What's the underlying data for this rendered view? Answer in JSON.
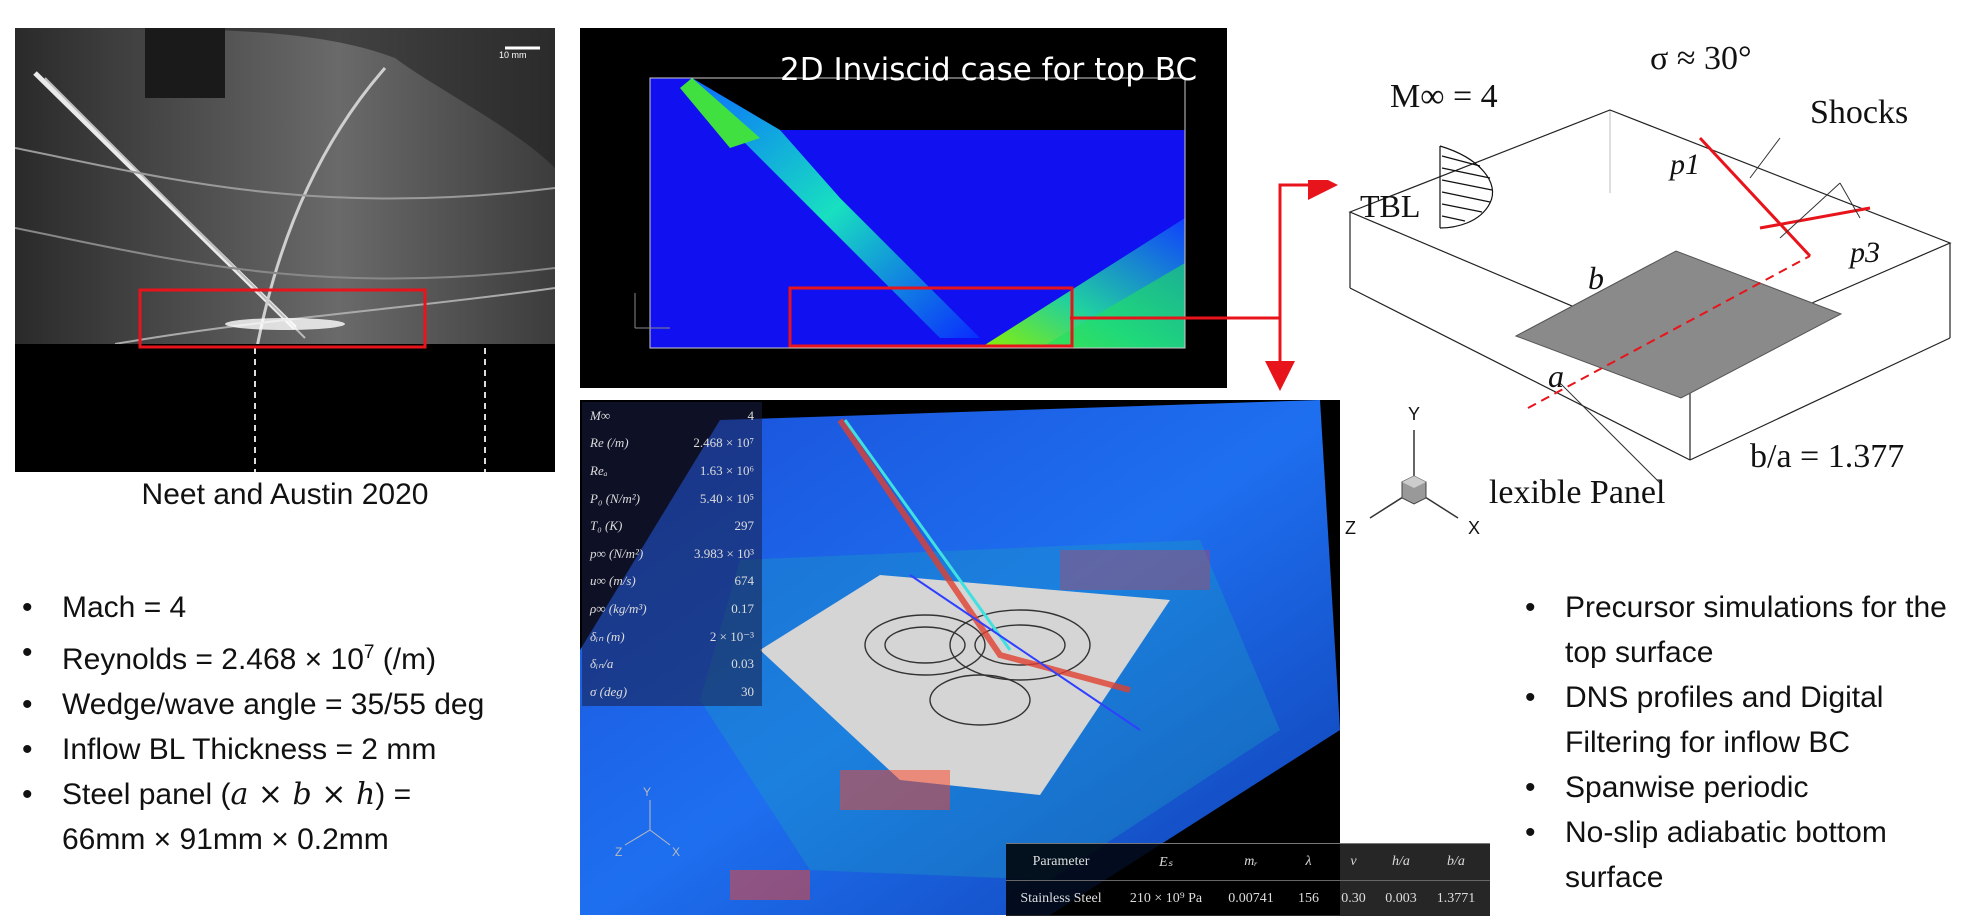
{
  "schlieren": {
    "caption": "Neet and Austin 2020",
    "scale_bar": "10 mm"
  },
  "left_bullets": [
    {
      "html_key": "mach",
      "text": "Mach = 4"
    },
    {
      "html_key": "reynolds",
      "text": "Reynolds = 2.468 × 10",
      "sup": "7",
      "tail": " (/m)"
    },
    {
      "html_key": "angle",
      "text": "Wedge/wave angle = 35/55 deg"
    },
    {
      "html_key": "bl",
      "text": "Inflow BL Thickness =  2 mm"
    },
    {
      "html_key": "panel",
      "text_a": "Steel panel (",
      "italic": "a  × b  × h",
      "text_b": ") =",
      "line2": "66mm × 91mm × 0.2mm"
    }
  ],
  "inviscid": {
    "title": "2D Inviscid case for top BC"
  },
  "schematic": {
    "mach": "M∞ = 4",
    "sigma": "σ ≈ 30°",
    "shocks": "Shocks",
    "tbl": "TBL",
    "p1": "p1",
    "p3": "p3",
    "b": "b",
    "a": "a",
    "panel": "Flexible Panel",
    "ratio": "b/a = 1.377"
  },
  "axis_triad": {
    "y": "Y",
    "z": "Z",
    "x": "X"
  },
  "dns_params": [
    {
      "k": "M∞",
      "v": "4"
    },
    {
      "k": "Re (/m)",
      "v": "2.468 × 10⁷"
    },
    {
      "k": "Reₐ",
      "v": "1.63 × 10⁶"
    },
    {
      "k": "P₀ (N/m²)",
      "v": "5.40 × 10⁵"
    },
    {
      "k": "T₀ (K)",
      "v": "297"
    },
    {
      "k": "p∞ (N/m²)",
      "v": "3.983 × 10³"
    },
    {
      "k": "u∞ (m/s)",
      "v": "674"
    },
    {
      "k": "ρ∞ (kg/m³)",
      "v": "0.17"
    },
    {
      "k": "δᵢₙ (m)",
      "v": "2 × 10⁻³"
    },
    {
      "k": "δᵢₙ/a",
      "v": "0.03"
    },
    {
      "k": "σ (deg)",
      "v": "30"
    }
  ],
  "material_table": {
    "headers": [
      "Parameter",
      "Eₛ",
      "mᵣ",
      "λ",
      "ν",
      "h/a",
      "b/a"
    ],
    "row": [
      "Stainless Steel",
      "210 × 10⁹ Pa",
      "0.00741",
      "156",
      "0.30",
      "0.003",
      "1.3771"
    ]
  },
  "right_bullets": [
    "Precursor simulations for the top surface",
    "DNS profiles and Digital Filtering for inflow BC",
    "Spanwise periodic",
    "No-slip adiabatic bottom surface"
  ],
  "colors": {
    "highlight": "#e8141b",
    "flow_blue": "#1010ff"
  }
}
